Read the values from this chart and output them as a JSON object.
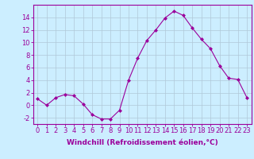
{
  "x": [
    0,
    1,
    2,
    3,
    4,
    5,
    6,
    7,
    8,
    9,
    10,
    11,
    12,
    13,
    14,
    15,
    16,
    17,
    18,
    19,
    20,
    21,
    22,
    23
  ],
  "y": [
    1,
    0,
    1.2,
    1.7,
    1.5,
    0.2,
    -1.5,
    -2.2,
    -2.2,
    -0.8,
    4.0,
    7.5,
    10.3,
    12.0,
    13.9,
    15.0,
    14.3,
    12.3,
    10.5,
    9.0,
    6.3,
    4.3,
    4.1,
    1.2
  ],
  "line_color": "#9b009b",
  "marker": "D",
  "marker_size": 2.0,
  "bg_color": "#cceeff",
  "grid_color": "#b0c8d8",
  "xlabel": "Windchill (Refroidissement éolien,°C)",
  "xlabel_fontsize": 6.5,
  "tick_fontsize": 6.0,
  "ylim": [
    -3,
    16
  ],
  "yticks": [
    -2,
    0,
    2,
    4,
    6,
    8,
    10,
    12,
    14
  ],
  "xlim": [
    -0.5,
    23.5
  ]
}
